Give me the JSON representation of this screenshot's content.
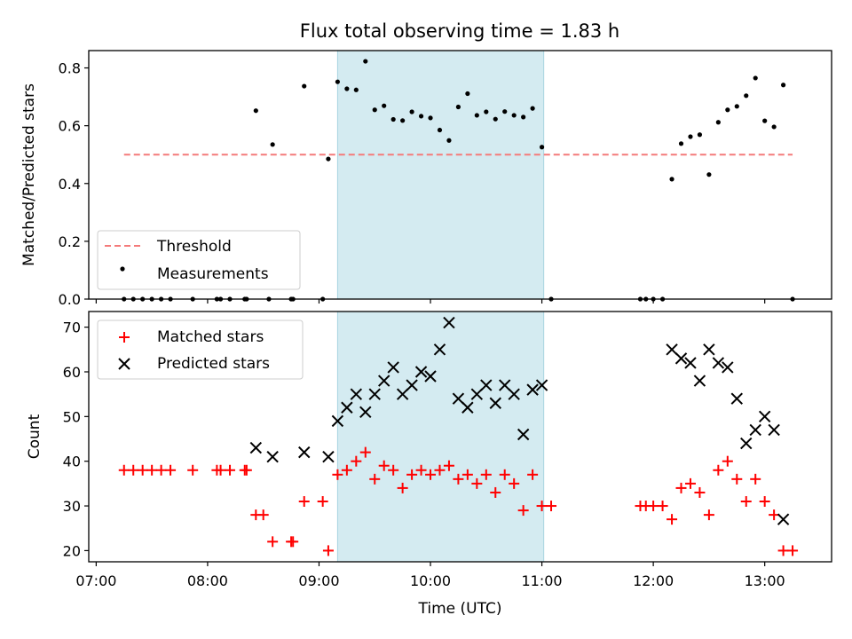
{
  "chart_data": [
    {
      "type": "scatter",
      "title": "Flux total observing time = 1.83 h",
      "xlabel": "",
      "ylabel": "Matched/Predicted stars",
      "xlim": [
        "06:56",
        "13:36"
      ],
      "ylim": [
        0,
        0.86
      ],
      "x_ticks": [
        "07:00",
        "08:00",
        "09:00",
        "10:00",
        "11:00",
        "12:00",
        "13:00"
      ],
      "y_ticks": [
        "0.0",
        "0.2",
        "0.4",
        "0.6",
        "0.8"
      ],
      "shaded_interval": [
        "09:10",
        "11:01"
      ],
      "shaded_color": "#d4ebf1",
      "legend_position": "lower left",
      "threshold": {
        "name": "Threshold",
        "value": 0.5,
        "x": [
          "07:15",
          "13:15"
        ],
        "color": "#f47a7a"
      },
      "series": [
        {
          "name": "Measurements",
          "color": "#000000",
          "points": [
            [
              "07:15",
              0
            ],
            [
              "07:20",
              0
            ],
            [
              "07:25",
              0
            ],
            [
              "07:30",
              0
            ],
            [
              "07:35",
              0
            ],
            [
              "07:40",
              0
            ],
            [
              "07:52",
              0
            ],
            [
              "08:05",
              0
            ],
            [
              "08:07",
              0
            ],
            [
              "08:12",
              0
            ],
            [
              "08:20",
              0
            ],
            [
              "08:21",
              0
            ],
            [
              "08:26",
              0.652
            ],
            [
              "08:33",
              0
            ],
            [
              "08:35",
              0.535
            ],
            [
              "08:45",
              0
            ],
            [
              "08:46",
              0
            ],
            [
              "08:52",
              0.737
            ],
            [
              "09:02",
              0
            ],
            [
              "09:05",
              0.485
            ],
            [
              "09:10",
              0.752
            ],
            [
              "09:15",
              0.728
            ],
            [
              "09:20",
              0.724
            ],
            [
              "09:25",
              0.823
            ],
            [
              "09:30",
              0.655
            ],
            [
              "09:35",
              0.669
            ],
            [
              "09:40",
              0.622
            ],
            [
              "09:45",
              0.618
            ],
            [
              "09:50",
              0.648
            ],
            [
              "09:55",
              0.633
            ],
            [
              "10:00",
              0.627
            ],
            [
              "10:05",
              0.585
            ],
            [
              "10:10",
              0.549
            ],
            [
              "10:15",
              0.665
            ],
            [
              "10:20",
              0.711
            ],
            [
              "10:25",
              0.636
            ],
            [
              "10:30",
              0.648
            ],
            [
              "10:35",
              0.623
            ],
            [
              "10:40",
              0.649
            ],
            [
              "10:45",
              0.636
            ],
            [
              "10:50",
              0.63
            ],
            [
              "10:55",
              0.66
            ],
            [
              "11:00",
              0.526
            ],
            [
              "11:05",
              0
            ],
            [
              "11:53",
              0
            ],
            [
              "11:56",
              0
            ],
            [
              "12:00",
              0
            ],
            [
              "12:05",
              0
            ],
            [
              "12:10",
              0.415
            ],
            [
              "12:15",
              0.538
            ],
            [
              "12:20",
              0.562
            ],
            [
              "12:25",
              0.569
            ],
            [
              "12:30",
              0.431
            ],
            [
              "12:35",
              0.612
            ],
            [
              "12:40",
              0.655
            ],
            [
              "12:45",
              0.667
            ],
            [
              "12:50",
              0.704
            ],
            [
              "12:55",
              0.765
            ],
            [
              "13:00",
              0.617
            ],
            [
              "13:05",
              0.596
            ],
            [
              "13:10",
              0.741
            ],
            [
              "13:15",
              0
            ]
          ]
        }
      ]
    },
    {
      "type": "scatter",
      "title": "",
      "xlabel": "Time (UTC)",
      "ylabel": "Count",
      "xlim": [
        "06:56",
        "13:36"
      ],
      "ylim": [
        17.5,
        73.5
      ],
      "x_ticks": [
        "07:00",
        "08:00",
        "09:00",
        "10:00",
        "11:00",
        "12:00",
        "13:00"
      ],
      "y_ticks": [
        "20",
        "30",
        "40",
        "50",
        "60",
        "70"
      ],
      "shaded_interval": [
        "09:10",
        "11:01"
      ],
      "shaded_color": "#d4ebf1",
      "legend_position": "upper left",
      "series": [
        {
          "name": "Matched stars",
          "color": "#ff0000",
          "marker": "plus",
          "points": [
            [
              "07:15",
              38
            ],
            [
              "07:20",
              38
            ],
            [
              "07:25",
              38
            ],
            [
              "07:30",
              38
            ],
            [
              "07:35",
              38
            ],
            [
              "07:40",
              38
            ],
            [
              "07:52",
              38
            ],
            [
              "08:05",
              38
            ],
            [
              "08:07",
              38
            ],
            [
              "08:12",
              38
            ],
            [
              "08:20",
              38
            ],
            [
              "08:21",
              38
            ],
            [
              "08:26",
              28
            ],
            [
              "08:30",
              28
            ],
            [
              "08:35",
              22
            ],
            [
              "08:45",
              22
            ],
            [
              "08:46",
              22
            ],
            [
              "08:52",
              31
            ],
            [
              "09:02",
              31
            ],
            [
              "09:05",
              20
            ],
            [
              "09:10",
              37
            ],
            [
              "09:15",
              38
            ],
            [
              "09:20",
              40
            ],
            [
              "09:25",
              42
            ],
            [
              "09:30",
              36
            ],
            [
              "09:35",
              39
            ],
            [
              "09:40",
              38
            ],
            [
              "09:45",
              34
            ],
            [
              "09:50",
              37
            ],
            [
              "09:55",
              38
            ],
            [
              "10:00",
              37
            ],
            [
              "10:05",
              38
            ],
            [
              "10:10",
              39
            ],
            [
              "10:15",
              36
            ],
            [
              "10:20",
              37
            ],
            [
              "10:25",
              35
            ],
            [
              "10:30",
              37
            ],
            [
              "10:35",
              33
            ],
            [
              "10:40",
              37
            ],
            [
              "10:45",
              35
            ],
            [
              "10:50",
              29
            ],
            [
              "10:55",
              37
            ],
            [
              "11:00",
              30
            ],
            [
              "11:05",
              30
            ],
            [
              "11:53",
              30
            ],
            [
              "11:56",
              30
            ],
            [
              "12:00",
              30
            ],
            [
              "12:05",
              30
            ],
            [
              "12:10",
              27
            ],
            [
              "12:15",
              34
            ],
            [
              "12:20",
              35
            ],
            [
              "12:25",
              33
            ],
            [
              "12:30",
              28
            ],
            [
              "12:35",
              38
            ],
            [
              "12:40",
              40
            ],
            [
              "12:45",
              36
            ],
            [
              "12:50",
              31
            ],
            [
              "12:55",
              36
            ],
            [
              "13:00",
              31
            ],
            [
              "13:05",
              28
            ],
            [
              "13:10",
              20
            ],
            [
              "13:15",
              20
            ]
          ]
        },
        {
          "name": "Predicted stars",
          "color": "#000000",
          "marker": "x",
          "points": [
            [
              "08:26",
              43
            ],
            [
              "08:35",
              41
            ],
            [
              "08:52",
              42
            ],
            [
              "09:05",
              41
            ],
            [
              "09:10",
              49
            ],
            [
              "09:15",
              52
            ],
            [
              "09:20",
              55
            ],
            [
              "09:25",
              51
            ],
            [
              "09:30",
              55
            ],
            [
              "09:35",
              58
            ],
            [
              "09:40",
              61
            ],
            [
              "09:45",
              55
            ],
            [
              "09:50",
              57
            ],
            [
              "09:55",
              60
            ],
            [
              "10:00",
              59
            ],
            [
              "10:05",
              65
            ],
            [
              "10:10",
              71
            ],
            [
              "10:15",
              54
            ],
            [
              "10:20",
              52
            ],
            [
              "10:25",
              55
            ],
            [
              "10:30",
              57
            ],
            [
              "10:35",
              53
            ],
            [
              "10:40",
              57
            ],
            [
              "10:45",
              55
            ],
            [
              "10:50",
              46
            ],
            [
              "10:55",
              56
            ],
            [
              "11:00",
              57
            ],
            [
              "12:10",
              65
            ],
            [
              "12:15",
              63
            ],
            [
              "12:20",
              62
            ],
            [
              "12:25",
              58
            ],
            [
              "12:30",
              65
            ],
            [
              "12:35",
              62
            ],
            [
              "12:40",
              61
            ],
            [
              "12:45",
              54
            ],
            [
              "12:50",
              44
            ],
            [
              "12:55",
              47
            ],
            [
              "13:00",
              50
            ],
            [
              "13:05",
              47
            ],
            [
              "13:10",
              27
            ]
          ]
        }
      ]
    }
  ]
}
